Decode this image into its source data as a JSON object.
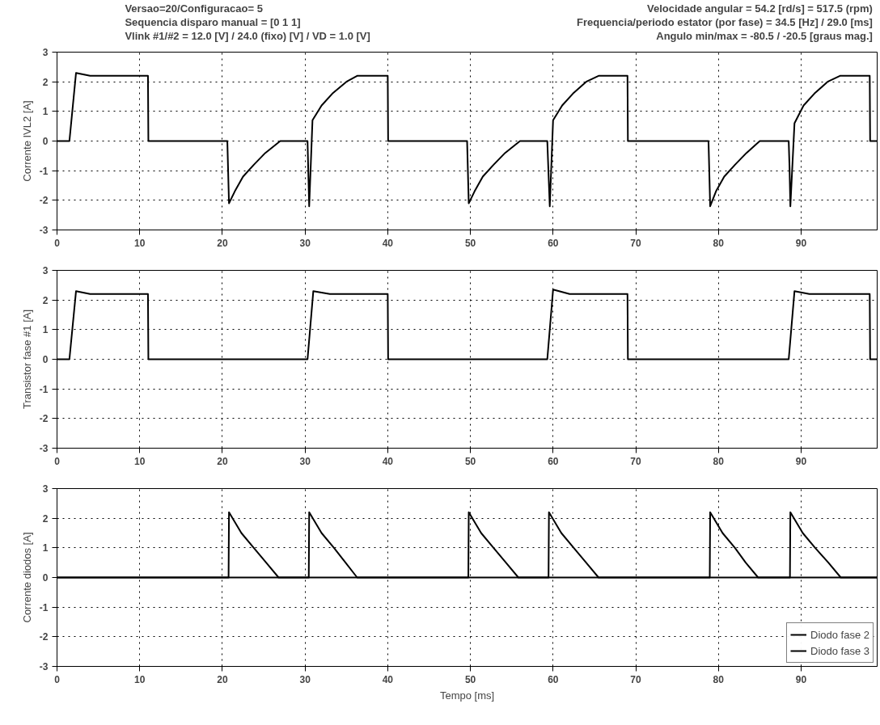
{
  "chart_data": [
    {
      "type": "line",
      "ylabel": "Corrente IVL2 [A]",
      "xlim": [
        0,
        99.2
      ],
      "ylim": [
        -3,
        3
      ],
      "xticks": [
        0,
        10,
        20,
        30,
        40,
        50,
        60,
        70,
        80,
        90
      ],
      "yticks": [
        -3,
        -2,
        -1,
        0,
        1,
        2,
        3
      ],
      "grid": true,
      "line_style": "solid",
      "annotations": [
        "Versao=20/Configuracao= 5",
        "Sequencia disparo manual = [0 1 1]",
        "Vlink #1/#2 = 12.0 [V] / 24.0 (fixo) [V] / VD = 1.0 [V]",
        "Velocidade angular = 54.2 [rd/s] = 517.5 (rpm)",
        "Frequencia/periodo estator (por fase) = 34.5 [Hz] / 29.0 [ms]",
        "Angulo min/max = -80.5 / -20.5 [graus mag.]"
      ],
      "series": [
        {
          "color": "#000000",
          "x": [
            0,
            1.5,
            2.3,
            4,
            11,
            11.05,
            20.6,
            20.8,
            21.5,
            22.5,
            23.8,
            25.2,
            27,
            30.3,
            30.5,
            30.9,
            32,
            33.3,
            35,
            36.3,
            40,
            40.05,
            49.6,
            49.8,
            50.5,
            51.5,
            52.8,
            54.2,
            56,
            59.3,
            59.6,
            60,
            61.1,
            62.4,
            64,
            65.5,
            69,
            69.05,
            78.8,
            79,
            79.7,
            80.7,
            82,
            83.4,
            85,
            88.5,
            88.6,
            88.7,
            89.2,
            90.3,
            91.6,
            93.2,
            94.7,
            98.3,
            98.35,
            99.2
          ],
          "values": [
            0,
            0,
            2.3,
            2.2,
            2.2,
            0,
            0,
            -2.1,
            -1.7,
            -1.2,
            -0.8,
            -0.4,
            0,
            0,
            -2.2,
            0.7,
            1.2,
            1.6,
            2.0,
            2.2,
            2.2,
            0,
            0,
            -2.1,
            -1.7,
            -1.2,
            -0.8,
            -0.4,
            0,
            0,
            -2.2,
            0.7,
            1.2,
            1.6,
            2.0,
            2.2,
            2.2,
            0,
            0,
            -2.2,
            -1.7,
            -1.2,
            -0.8,
            -0.4,
            0,
            0,
            -0.9,
            -2.2,
            0.6,
            1.2,
            1.6,
            2.0,
            2.2,
            2.2,
            0,
            0
          ]
        }
      ]
    },
    {
      "type": "line",
      "ylabel": "Transistor fase #1 [A]",
      "xlim": [
        0,
        99.2
      ],
      "ylim": [
        -3,
        3
      ],
      "xticks": [
        0,
        10,
        20,
        30,
        40,
        50,
        60,
        70,
        80,
        90
      ],
      "yticks": [
        -3,
        -2,
        -1,
        0,
        1,
        2,
        3
      ],
      "grid": true,
      "line_style": "solid",
      "series": [
        {
          "color": "#000000",
          "x": [
            0,
            1.5,
            2.3,
            4,
            11,
            11.05,
            30.3,
            31,
            33,
            40,
            40.05,
            59.3,
            60,
            62,
            69,
            69.05,
            88.5,
            89.2,
            91,
            98.3,
            98.35,
            99.2
          ],
          "values": [
            0,
            0,
            2.3,
            2.2,
            2.2,
            0,
            0,
            2.3,
            2.2,
            2.2,
            0,
            0,
            2.35,
            2.2,
            2.2,
            0,
            0,
            2.3,
            2.2,
            2.2,
            0,
            0
          ]
        }
      ]
    },
    {
      "type": "line",
      "xlabel": "Tempo [ms]",
      "ylabel": "Corrente diodos [A]",
      "xlim": [
        0,
        99.2
      ],
      "ylim": [
        -3,
        3
      ],
      "xticks": [
        0,
        10,
        20,
        30,
        40,
        50,
        60,
        70,
        80,
        90
      ],
      "yticks": [
        -3,
        -2,
        -1,
        0,
        1,
        2,
        3
      ],
      "grid": true,
      "line_style": "solid",
      "legend": "bottom right",
      "series": [
        {
          "name": "Diodo fase 2",
          "color": "#000000",
          "x": [
            0,
            20.75,
            20.8,
            22.3,
            23.8,
            25.3,
            26.8,
            49.75,
            49.8,
            51.3,
            52.8,
            54.3,
            55.8,
            78.95,
            79,
            80.5,
            82,
            83.3,
            84.8,
            99.2
          ],
          "values": [
            0,
            0,
            2.2,
            1.5,
            1.0,
            0.5,
            0,
            0,
            2.2,
            1.5,
            1.0,
            0.5,
            0,
            0,
            2.2,
            1.5,
            1.0,
            0.5,
            0,
            0
          ]
        },
        {
          "name": "Diodo fase 3",
          "color": "#000000",
          "x": [
            0,
            30.45,
            30.5,
            32,
            33.5,
            34.9,
            36.3,
            59.45,
            59.5,
            61,
            62.5,
            64,
            65.5,
            88.65,
            88.7,
            90.2,
            91.7,
            93.3,
            94.8,
            99.2
          ],
          "values": [
            0,
            0,
            2.2,
            1.5,
            1.0,
            0.5,
            0,
            0,
            2.2,
            1.5,
            1.0,
            0.5,
            0,
            0,
            2.2,
            1.5,
            1.0,
            0.5,
            0,
            0
          ]
        }
      ]
    }
  ]
}
